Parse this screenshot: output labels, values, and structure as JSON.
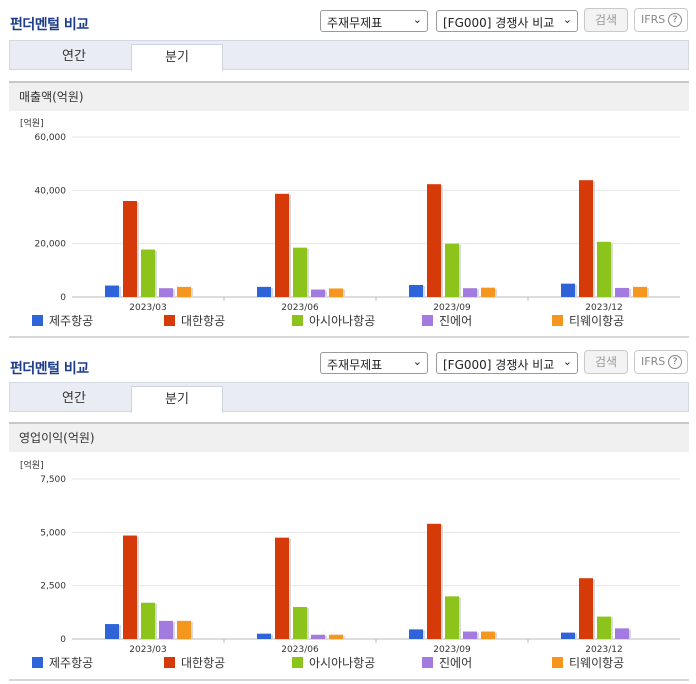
{
  "sections": [
    {
      "title": "펀더멘털 비교",
      "select1": "주재무제표",
      "select2": "[FG000] 경쟁사 비교",
      "search_label": "검색",
      "ifrs_label": "IFRS",
      "tabs": [
        "연간",
        "분기"
      ],
      "active_tab": 1,
      "chart_title": "매출액(억원)"
    },
    {
      "title": "펀더멘털 비교",
      "select1": "주재무제표",
      "select2": "[FG000] 경쟁사 비교",
      "search_label": "검색",
      "ifrs_label": "IFRS",
      "tabs": [
        "연간",
        "분기"
      ],
      "active_tab": 1,
      "chart_title": "영업이익(억원)"
    }
  ],
  "colors": {
    "title": "#1d3c8a",
    "series": [
      "#2f63d8",
      "#d63a08",
      "#8cc41b",
      "#a37be0",
      "#f5961e"
    ]
  },
  "chart_data": [
    {
      "type": "bar",
      "unit_label": "[억원]",
      "categories": [
        "2023/03",
        "2023/06",
        "2023/09",
        "2023/12"
      ],
      "yticks": [
        "0",
        "20,000",
        "40,000",
        "60,000"
      ],
      "ylim": [
        0,
        60000
      ],
      "grid": true,
      "legend_position": "bottom",
      "series": [
        {
          "name": "제주항공",
          "values": [
            4300,
            3800,
            4500,
            5000
          ]
        },
        {
          "name": "대한항공",
          "values": [
            36000,
            38700,
            42300,
            43800
          ]
        },
        {
          "name": "아시아나항공",
          "values": [
            17800,
            18500,
            20000,
            20700
          ]
        },
        {
          "name": "진에어",
          "values": [
            3300,
            2800,
            3300,
            3400
          ]
        },
        {
          "name": "티웨이항공",
          "values": [
            3800,
            3200,
            3500,
            3800
          ]
        }
      ]
    },
    {
      "type": "bar",
      "unit_label": "[억원]",
      "categories": [
        "2023/03",
        "2023/06",
        "2023/09",
        "2023/12"
      ],
      "yticks": [
        "0",
        "2,500",
        "5,000",
        "7,500"
      ],
      "ylim": [
        0,
        7500
      ],
      "grid": true,
      "legend_position": "bottom",
      "series": [
        {
          "name": "제주항공",
          "values": [
            700,
            250,
            450,
            300
          ]
        },
        {
          "name": "대한항공",
          "values": [
            4850,
            4750,
            5400,
            2850
          ]
        },
        {
          "name": "아시아나항공",
          "values": [
            1700,
            1500,
            2000,
            1050
          ]
        },
        {
          "name": "진에어",
          "values": [
            850,
            200,
            350,
            500
          ]
        },
        {
          "name": "티웨이항공",
          "values": [
            850,
            200,
            350,
            0
          ]
        }
      ]
    }
  ]
}
